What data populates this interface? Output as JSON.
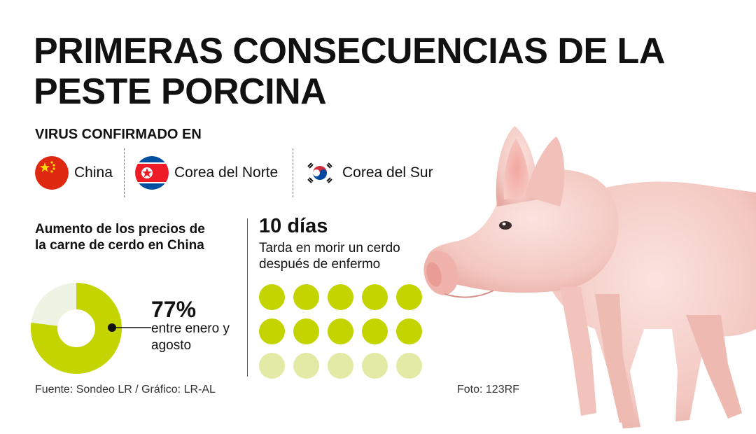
{
  "title": "PRIMERAS CONSECUENCIAS DE LA PESTE PORCINA",
  "confirmed": {
    "heading": "VIRUS CONFIRMADO EN",
    "countries": [
      {
        "name": "China",
        "flag": "china-flag-icon"
      },
      {
        "name": "Corea del Norte",
        "flag": "north-korea-flag-icon"
      },
      {
        "name": "Corea del Sur",
        "flag": "south-korea-flag-icon"
      }
    ]
  },
  "price": {
    "heading": "Aumento de los precios de la carne de cerdo en China",
    "percent": 0.77,
    "percent_label": "77%",
    "percent_desc": "entre enero y agosto"
  },
  "death": {
    "days_label": "10 días",
    "desc": "Tarda en morir un cerdo después de enfermo",
    "dots_total": 15,
    "dots_highlighted": 10
  },
  "colors": {
    "accent": "#c3d400",
    "accent_light": "#e3eaa6",
    "ring_rest": "#eef3e4"
  },
  "footer": {
    "source": "Fuente: Sondeo LR / Gráfico: LR-AL",
    "photo_credit": "Foto: 123RF"
  }
}
